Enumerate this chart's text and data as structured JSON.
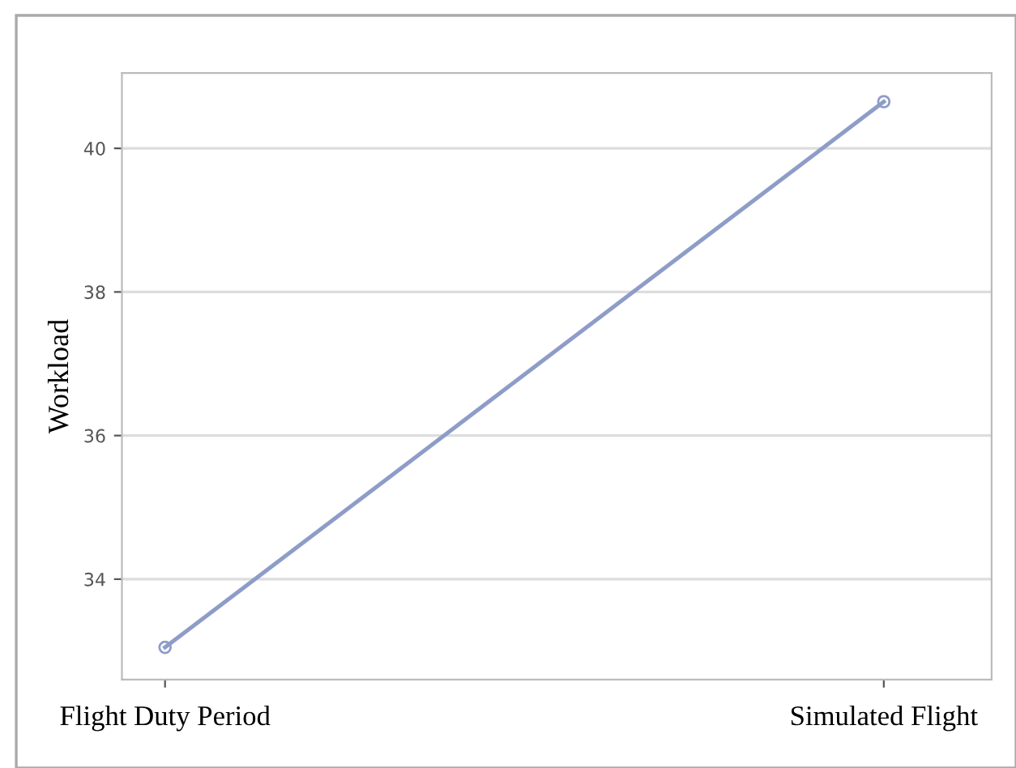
{
  "chart_data": {
    "type": "line",
    "ylabel": "Workload",
    "categories": [
      "Flight Duty Period",
      "Simulated Flight"
    ],
    "series": [
      {
        "color": "#8e9cc8",
        "values": [
          33.05,
          40.65
        ]
      }
    ],
    "ylim": [
      32.6,
      41.05
    ],
    "yticks": [
      34,
      36,
      38,
      40
    ],
    "grid": "y",
    "marker": "circle",
    "line_style": "solid",
    "legend": false
  }
}
